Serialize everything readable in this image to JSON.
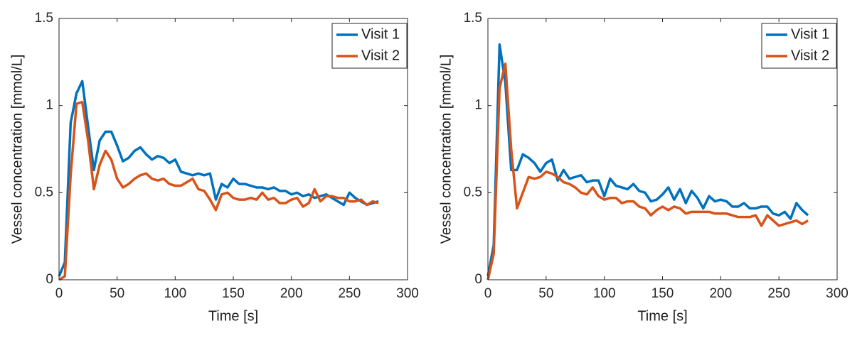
{
  "chart_data": [
    {
      "type": "line",
      "xlabel": "Time [s]",
      "ylabel": "Vessel concentration [mmol/L]",
      "x": [
        0,
        5,
        10,
        15,
        20,
        25,
        30,
        35,
        40,
        45,
        50,
        55,
        60,
        65,
        70,
        75,
        80,
        85,
        90,
        95,
        100,
        105,
        110,
        115,
        120,
        125,
        130,
        135,
        140,
        145,
        150,
        155,
        160,
        165,
        170,
        175,
        180,
        185,
        190,
        195,
        200,
        205,
        210,
        215,
        220,
        225,
        230,
        235,
        240,
        245,
        250,
        255,
        260,
        265,
        270,
        275
      ],
      "series": [
        {
          "name": "Visit 1",
          "color": "#0072bd",
          "values": [
            0.02,
            0.1,
            0.9,
            1.07,
            1.14,
            0.88,
            0.63,
            0.8,
            0.85,
            0.85,
            0.77,
            0.68,
            0.7,
            0.74,
            0.76,
            0.72,
            0.69,
            0.71,
            0.7,
            0.67,
            0.69,
            0.62,
            0.61,
            0.6,
            0.61,
            0.6,
            0.61,
            0.46,
            0.55,
            0.53,
            0.58,
            0.55,
            0.55,
            0.54,
            0.53,
            0.53,
            0.52,
            0.53,
            0.51,
            0.51,
            0.49,
            0.5,
            0.48,
            0.49,
            0.47,
            0.48,
            0.49,
            0.47,
            0.45,
            0.43,
            0.5,
            0.47,
            0.45,
            0.43,
            0.44,
            0.45
          ]
        },
        {
          "name": "Visit 2",
          "color": "#d95319",
          "values": [
            0,
            0.02,
            0.6,
            1.01,
            1.02,
            0.8,
            0.52,
            0.66,
            0.74,
            0.69,
            0.58,
            0.53,
            0.55,
            0.58,
            0.6,
            0.61,
            0.58,
            0.57,
            0.58,
            0.55,
            0.54,
            0.54,
            0.56,
            0.58,
            0.52,
            0.51,
            0.46,
            0.4,
            0.49,
            0.5,
            0.47,
            0.46,
            0.46,
            0.47,
            0.46,
            0.5,
            0.46,
            0.47,
            0.44,
            0.44,
            0.46,
            0.47,
            0.42,
            0.44,
            0.52,
            0.45,
            0.48,
            0.48,
            0.47,
            0.47,
            0.45,
            0.45,
            0.46,
            0.43,
            0.45,
            0.44
          ]
        }
      ],
      "xlim": [
        0,
        300
      ],
      "xticks": [
        0,
        50,
        100,
        150,
        200,
        250,
        300
      ],
      "ylim": [
        0,
        1.5
      ],
      "yticks": [
        0,
        0.5,
        1,
        1.5
      ],
      "legend": "upper right"
    },
    {
      "type": "line",
      "xlabel": "Time [s]",
      "ylabel": "Vessel concentration [mmol/L]",
      "x": [
        0,
        5,
        10,
        15,
        20,
        25,
        30,
        35,
        40,
        45,
        50,
        55,
        60,
        65,
        70,
        75,
        80,
        85,
        90,
        95,
        100,
        105,
        110,
        115,
        120,
        125,
        130,
        135,
        140,
        145,
        150,
        155,
        160,
        165,
        170,
        175,
        180,
        185,
        190,
        195,
        200,
        205,
        210,
        215,
        220,
        225,
        230,
        235,
        240,
        245,
        250,
        255,
        260,
        265,
        270,
        275
      ],
      "series": [
        {
          "name": "Visit 1",
          "color": "#0072bd",
          "values": [
            0.02,
            0.2,
            1.35,
            1.13,
            0.63,
            0.63,
            0.72,
            0.7,
            0.67,
            0.62,
            0.67,
            0.69,
            0.57,
            0.63,
            0.58,
            0.59,
            0.6,
            0.56,
            0.57,
            0.57,
            0.48,
            0.58,
            0.54,
            0.53,
            0.52,
            0.55,
            0.51,
            0.5,
            0.45,
            0.46,
            0.49,
            0.53,
            0.46,
            0.52,
            0.44,
            0.51,
            0.47,
            0.41,
            0.48,
            0.45,
            0.46,
            0.45,
            0.42,
            0.42,
            0.44,
            0.41,
            0.41,
            0.42,
            0.42,
            0.38,
            0.37,
            0.39,
            0.35,
            0.44,
            0.4,
            0.37
          ]
        },
        {
          "name": "Visit 2",
          "color": "#d95319",
          "values": [
            0,
            0.15,
            1.1,
            1.24,
            0.75,
            0.41,
            0.5,
            0.59,
            0.58,
            0.59,
            0.62,
            0.61,
            0.59,
            0.56,
            0.55,
            0.53,
            0.5,
            0.49,
            0.53,
            0.48,
            0.46,
            0.47,
            0.47,
            0.44,
            0.45,
            0.45,
            0.42,
            0.41,
            0.37,
            0.4,
            0.42,
            0.4,
            0.42,
            0.41,
            0.38,
            0.39,
            0.39,
            0.39,
            0.39,
            0.38,
            0.38,
            0.38,
            0.37,
            0.36,
            0.36,
            0.36,
            0.37,
            0.31,
            0.37,
            0.34,
            0.31,
            0.32,
            0.33,
            0.34,
            0.32,
            0.34
          ]
        }
      ],
      "xlim": [
        0,
        300
      ],
      "xticks": [
        0,
        50,
        100,
        150,
        200,
        250,
        300
      ],
      "ylim": [
        0,
        1.5
      ],
      "yticks": [
        0,
        0.5,
        1,
        1.5
      ],
      "legend": "upper right"
    }
  ]
}
